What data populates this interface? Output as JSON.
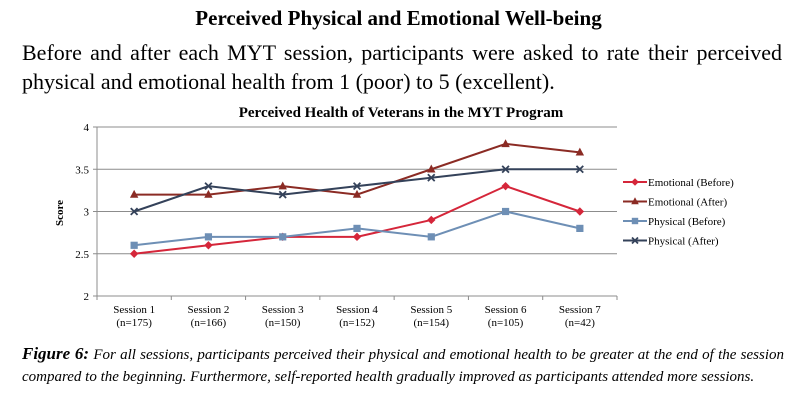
{
  "heading": "Perceived Physical and Emotional Well-being",
  "intro": "Before and after each MYT session, participants were asked to rate their perceived physical and emotional health from 1 (poor) to 5 (excellent).",
  "chart_data": {
    "type": "line",
    "title": "Perceived Health of Veterans in the MYT Program",
    "xlabel": "",
    "ylabel": "Score",
    "ylim": [
      2,
      4
    ],
    "yticks": [
      2,
      2.5,
      3,
      3.5,
      4
    ],
    "ytick_labels": [
      "2",
      "2.5",
      "3",
      "3.5",
      "4"
    ],
    "grid": true,
    "legend_position": "right",
    "categories": [
      [
        "Session 1",
        "(n=175)"
      ],
      [
        "Session 2",
        "(n=166)"
      ],
      [
        "Session 3",
        "(n=150)"
      ],
      [
        "Session 4",
        "(n=152)"
      ],
      [
        "Session 5",
        "(n=154)"
      ],
      [
        "Session 6",
        "(n=105)"
      ],
      [
        "Session 7",
        "(n=42)"
      ]
    ],
    "series": [
      {
        "name": "Emotional (Before)",
        "color": "#d5263a",
        "marker": "diamond",
        "values": [
          2.5,
          2.6,
          2.7,
          2.7,
          2.9,
          3.3,
          3.0
        ]
      },
      {
        "name": "Emotional (After)",
        "color": "#8b2b24",
        "marker": "triangle",
        "values": [
          3.2,
          3.2,
          3.3,
          3.2,
          3.5,
          3.8,
          3.7
        ]
      },
      {
        "name": "Physical (Before)",
        "color": "#6e8fb5",
        "marker": "square",
        "values": [
          2.6,
          2.7,
          2.7,
          2.8,
          2.7,
          3.0,
          2.8
        ]
      },
      {
        "name": "Physical (After)",
        "color": "#34425a",
        "marker": "x",
        "values": [
          3.0,
          3.3,
          3.2,
          3.3,
          3.4,
          3.5,
          3.5
        ]
      }
    ]
  },
  "caption": {
    "label": "Figure 6:",
    "text": "For all sessions, participants perceived their physical and emotional health to be greater at the end of the session compared to the beginning. Furthermore, self-reported health gradually improved as participants attended more sessions."
  }
}
